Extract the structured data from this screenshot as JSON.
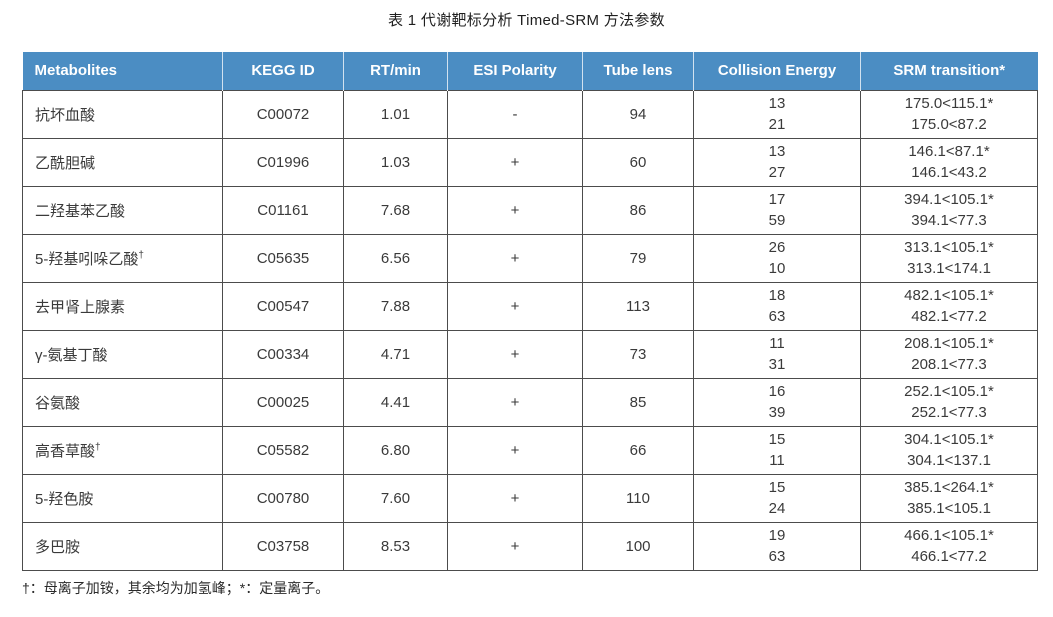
{
  "title": "表 1 代谢靶标分析 Timed-SRM 方法参数",
  "footnote": "†：母离子加铵，其余均为加氢峰；*：定量离子。",
  "colors": {
    "header_bg": "#4B8DC3",
    "header_text": "#FFFFFF",
    "body_text": "#3A3A3A",
    "border": "#4C4C4C"
  },
  "table": {
    "columns": [
      {
        "key": "metabolite",
        "label": "Metabolites",
        "align": "left"
      },
      {
        "key": "kegg",
        "label": "KEGG ID",
        "align": "center"
      },
      {
        "key": "rt",
        "label": "RT/min",
        "align": "center"
      },
      {
        "key": "esi",
        "label": "ESI Polarity",
        "align": "center"
      },
      {
        "key": "tube",
        "label": "Tube lens",
        "align": "center"
      },
      {
        "key": "ce",
        "label": "Collision Energy",
        "align": "center"
      },
      {
        "key": "srm",
        "label": "SRM transition*",
        "align": "center"
      }
    ],
    "rows": [
      {
        "metabolite": "抗坏血酸",
        "sup": "",
        "kegg": "C00072",
        "rt": "1.01",
        "esi": "-",
        "tube": "94",
        "ce": [
          "13",
          "21"
        ],
        "srm": [
          "175.0<115.1*",
          "175.0<87.2"
        ]
      },
      {
        "metabolite": "乙酰胆碱",
        "sup": "",
        "kegg": "C01996",
        "rt": "1.03",
        "esi": "+",
        "tube": "60",
        "ce": [
          "13",
          "27"
        ],
        "srm": [
          "146.1<87.1*",
          "146.1<43.2"
        ]
      },
      {
        "metabolite": "二羟基苯乙酸",
        "sup": "",
        "kegg": "C01161",
        "rt": "7.68",
        "esi": "+",
        "tube": "86",
        "ce": [
          "17",
          "59"
        ],
        "srm": [
          "394.1<105.1*",
          "394.1<77.3"
        ]
      },
      {
        "metabolite": "5-羟基吲哚乙酸",
        "sup": "†",
        "kegg": "C05635",
        "rt": "6.56",
        "esi": "+",
        "tube": "79",
        "ce": [
          "26",
          "10"
        ],
        "srm": [
          "313.1<105.1*",
          "313.1<174.1"
        ]
      },
      {
        "metabolite": "去甲肾上腺素",
        "sup": "",
        "kegg": "C00547",
        "rt": "7.88",
        "esi": "+",
        "tube": "113",
        "ce": [
          "18",
          "63"
        ],
        "srm": [
          "482.1<105.1*",
          "482.1<77.2"
        ]
      },
      {
        "metabolite": "γ-氨基丁酸",
        "sup": "",
        "kegg": "C00334",
        "rt": "4.71",
        "esi": "+",
        "tube": "73",
        "ce": [
          "11",
          "31"
        ],
        "srm": [
          "208.1<105.1*",
          "208.1<77.3"
        ]
      },
      {
        "metabolite": "谷氨酸",
        "sup": "",
        "kegg": "C00025",
        "rt": "4.41",
        "esi": "+",
        "tube": "85",
        "ce": [
          "16",
          "39"
        ],
        "srm": [
          "252.1<105.1*",
          "252.1<77.3"
        ]
      },
      {
        "metabolite": "高香草酸",
        "sup": "†",
        "kegg": "C05582",
        "rt": "6.80",
        "esi": "+",
        "tube": "66",
        "ce": [
          "15",
          "11"
        ],
        "srm": [
          "304.1<105.1*",
          "304.1<137.1"
        ]
      },
      {
        "metabolite": "5-羟色胺",
        "sup": "",
        "kegg": "C00780",
        "rt": "7.60",
        "esi": "+",
        "tube": "110",
        "ce": [
          "15",
          "24"
        ],
        "srm": [
          "385.1<264.1*",
          "385.1<105.1"
        ]
      },
      {
        "metabolite": "多巴胺",
        "sup": "",
        "kegg": "C03758",
        "rt": "8.53",
        "esi": "+",
        "tube": "100",
        "ce": [
          "19",
          "63"
        ],
        "srm": [
          "466.1<105.1*",
          "466.1<77.2"
        ]
      }
    ]
  }
}
